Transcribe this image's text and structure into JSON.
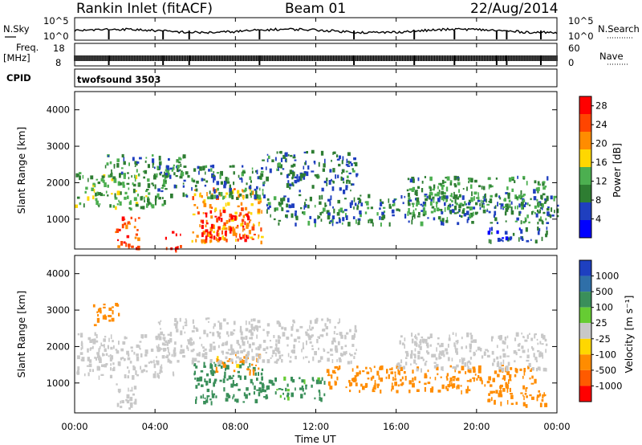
{
  "header": {
    "station": "Rankin Inlet (fitACF)",
    "beam": "Beam 01",
    "date": "22/Aug/2014"
  },
  "top_panels": {
    "nsky_label": "N.Sky",
    "nsearch_label": "N.Search",
    "nsky_ticks": [
      "10^5",
      "10^0"
    ],
    "nsearch_ticks": [
      "10^5",
      "10^0"
    ],
    "freq_label": "Freq.",
    "freq_unit": "[MHz]",
    "freq_ticks": [
      "18",
      "8"
    ],
    "nave_label": "Nave",
    "nave_ticks": [
      "60",
      "0"
    ],
    "cpid_label": "CPID",
    "cpid_value": "twofsound 3503"
  },
  "x_axis": {
    "label": "Time UT",
    "tick_labels": [
      "00:00",
      "04:00",
      "08:00",
      "12:00",
      "16:00",
      "20:00",
      "00:00"
    ],
    "range_hours": [
      0,
      24
    ]
  },
  "colors": {
    "power": [
      "#0000ff",
      "#1f3fbf",
      "#2e7d32",
      "#4caf50",
      "#ffd700",
      "#ff8c00",
      "#ff4500",
      "#ff0000"
    ],
    "velocity": [
      "#1e40c0",
      "#2f6fa8",
      "#3a8f5a",
      "#66cc33",
      "#c8c8c8",
      "#ffd700",
      "#ff8c00",
      "#ff5a00",
      "#ff0000"
    ]
  },
  "chart_data": [
    {
      "type": "heatmap",
      "title": "",
      "xlabel": "Time UT",
      "ylabel": "Slant Range [km]",
      "xlim": [
        0,
        24
      ],
      "ylim": [
        180,
        4500
      ],
      "y_ticks": [
        1000,
        2000,
        3000,
        4000
      ],
      "colorbar": {
        "label": "Power [dB]",
        "ticks": [
          4,
          8,
          12,
          16,
          20,
          24,
          28
        ],
        "range": [
          0,
          30
        ]
      },
      "regions": [
        {
          "t": [
            0.0,
            4.5
          ],
          "r": [
            1300,
            2300
          ],
          "v": 12
        },
        {
          "t": [
            1.5,
            5.5
          ],
          "r": [
            2200,
            2800
          ],
          "v": 10
        },
        {
          "t": [
            2.0,
            3.2
          ],
          "r": [
            200,
            1100
          ],
          "v": 24
        },
        {
          "t": [
            4.5,
            5.3
          ],
          "r": [
            200,
            700
          ],
          "v": 26
        },
        {
          "t": [
            5.8,
            9.3
          ],
          "r": [
            400,
            1900
          ],
          "v": 20
        },
        {
          "t": [
            6.3,
            8.6
          ],
          "r": [
            450,
            1300
          ],
          "v": 28
        },
        {
          "t": [
            4.0,
            9.5
          ],
          "r": [
            1600,
            2500
          ],
          "v": 9
        },
        {
          "t": [
            9.3,
            14.0
          ],
          "r": [
            2100,
            2900
          ],
          "v": 8
        },
        {
          "t": [
            9.5,
            24.0
          ],
          "r": [
            900,
            1700
          ],
          "v": 9
        },
        {
          "t": [
            10.5,
            14.0
          ],
          "r": [
            1800,
            2100
          ],
          "v": 8
        },
        {
          "t": [
            16.5,
            23.5
          ],
          "r": [
            1200,
            2200
          ],
          "v": 11
        },
        {
          "t": [
            20.5,
            23.5
          ],
          "r": [
            400,
            800
          ],
          "v": 6
        }
      ]
    },
    {
      "type": "heatmap",
      "title": "",
      "xlabel": "Time UT",
      "ylabel": "Slant Range [km]",
      "xlim": [
        0,
        24
      ],
      "ylim": [
        180,
        4500
      ],
      "y_ticks": [
        1000,
        2000,
        3000,
        4000
      ],
      "colorbar": {
        "label": "Velocity [m s⁻¹]",
        "ticks": [
          1000,
          500,
          100,
          25,
          -25,
          -100,
          -500,
          -1000
        ]
      },
      "regions": [
        {
          "t": [
            0.0,
            5.0
          ],
          "r": [
            1200,
            2400
          ],
          "v": 0
        },
        {
          "t": [
            0.9,
            2.2
          ],
          "r": [
            2600,
            3200
          ],
          "v": -200
        },
        {
          "t": [
            2.0,
            3.0
          ],
          "r": [
            300,
            1100
          ],
          "v": 0
        },
        {
          "t": [
            5.8,
            9.3
          ],
          "r": [
            500,
            1600
          ],
          "v": 200
        },
        {
          "t": [
            7.0,
            9.2
          ],
          "r": [
            1300,
            1800
          ],
          "v": -150
        },
        {
          "t": [
            4.0,
            14.0
          ],
          "r": [
            1600,
            2800
          ],
          "v": 0
        },
        {
          "t": [
            9.3,
            12.5
          ],
          "r": [
            600,
            1200
          ],
          "v": 150
        },
        {
          "t": [
            12.5,
            23.0
          ],
          "r": [
            800,
            1500
          ],
          "v": -250
        },
        {
          "t": [
            16.0,
            23.5
          ],
          "r": [
            1400,
            2400
          ],
          "v": 0
        },
        {
          "t": [
            20.5,
            23.5
          ],
          "r": [
            400,
            800
          ],
          "v": -300
        }
      ]
    }
  ]
}
